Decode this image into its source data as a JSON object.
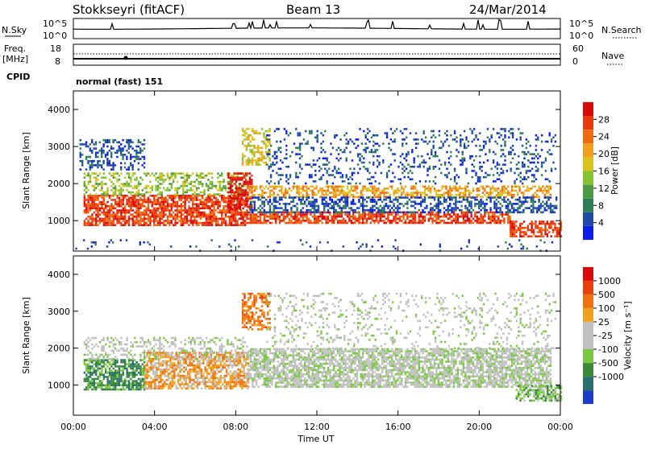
{
  "header": {
    "station": "Stokkseyri (fitACF)",
    "beam": "Beam 13",
    "date": "24/Mar/2014"
  },
  "noise_panel": {
    "left_label": "N.Sky",
    "right_label": "N.Search",
    "left_ticks": [
      "10^5",
      "10^0"
    ],
    "right_ticks": [
      "10^5",
      "10^0"
    ]
  },
  "freq_panel": {
    "left_label_1": "Freq.",
    "left_label_2": "[MHz]",
    "left_ticks": [
      "18",
      "8"
    ],
    "right_label": "Nave",
    "right_ticks": [
      "60",
      "0"
    ]
  },
  "cpid": {
    "label": "CPID",
    "value": "normal (fast) 151"
  },
  "chart_data": [
    {
      "type": "heatmap",
      "panel": "power",
      "ylabel": "Slant Range [km]",
      "xlabel": "Time UT",
      "xlim": [
        0,
        24
      ],
      "ylim": [
        180,
        4500
      ],
      "y_ticks": [
        1000,
        2000,
        3000,
        4000
      ],
      "x_tick_labels": [
        "00:00",
        "04:00",
        "08:00",
        "12:00",
        "16:00",
        "20:00",
        "00:00"
      ],
      "colorbar": {
        "label": "Power [dB]",
        "ticks": [
          "4",
          "8",
          "12",
          "16",
          "20",
          "24",
          "28"
        ],
        "colors": [
          "#0a1ee6",
          "#1f4aa8",
          "#2e7d55",
          "#4e9a44",
          "#86c232",
          "#d8c41c",
          "#f0a01a",
          "#f06a10",
          "#e83a0a",
          "#d80a0a"
        ]
      },
      "regions": [
        {
          "t0": 0.5,
          "t1": 8.6,
          "r0": 900,
          "r1": 1700,
          "level": 8,
          "density": 0.75
        },
        {
          "t0": 0.5,
          "t1": 8.6,
          "r0": 1700,
          "r1": 2300,
          "level": 4,
          "density": 0.45
        },
        {
          "t0": 0.3,
          "t1": 3.5,
          "r0": 2400,
          "r1": 3200,
          "level": 1,
          "density": 0.35
        },
        {
          "t0": 7.6,
          "t1": 8.8,
          "r0": 1300,
          "r1": 2300,
          "level": 9,
          "density": 0.6
        },
        {
          "t0": 8.3,
          "t1": 9.7,
          "r0": 2500,
          "r1": 3500,
          "level": 5,
          "density": 0.5
        },
        {
          "t0": 8.6,
          "t1": 23.5,
          "r0": 1650,
          "r1": 1950,
          "level": 6,
          "density": 0.55
        },
        {
          "t0": 8.6,
          "t1": 21.5,
          "r0": 950,
          "r1": 1250,
          "level": 8,
          "density": 0.7
        },
        {
          "t0": 8.6,
          "t1": 23.8,
          "r0": 1250,
          "r1": 1650,
          "level": 1,
          "density": 0.5
        },
        {
          "t0": 9.5,
          "t1": 23.8,
          "r0": 2000,
          "r1": 3500,
          "level": 1,
          "density": 0.18
        },
        {
          "t0": 21.5,
          "t1": 24.0,
          "r0": 600,
          "r1": 1000,
          "level": 8,
          "density": 0.65
        },
        {
          "t0": 0.0,
          "t1": 24.0,
          "r0": 200,
          "r1": 500,
          "level": 1,
          "density": 0.05
        }
      ]
    },
    {
      "type": "heatmap",
      "panel": "velocity",
      "ylabel": "Slant Range [km]",
      "xlabel": "Time UT",
      "xlim": [
        0,
        24
      ],
      "ylim": [
        180,
        4500
      ],
      "y_ticks": [
        1000,
        2000,
        3000,
        4000
      ],
      "x_tick_labels": [
        "00:00",
        "04:00",
        "08:00",
        "12:00",
        "16:00",
        "20:00",
        "00:00"
      ],
      "colorbar": {
        "label": "Velocity [m s⁻¹]",
        "ticks": [
          "1000",
          "500",
          "100",
          "25",
          "-25",
          "-100",
          "-500",
          "-1000"
        ],
        "colors": [
          "#1a3cc8",
          "#2a6e6e",
          "#3a8a3a",
          "#7ac840",
          "#c0c0c0",
          "#c0c0c0",
          "#f0a01a",
          "#f07010",
          "#e8400a",
          "#d80a0a"
        ]
      },
      "regions": [
        {
          "t0": 0.5,
          "t1": 3.5,
          "r0": 900,
          "r1": 1700,
          "level": 2,
          "density": 0.7
        },
        {
          "t0": 3.5,
          "t1": 8.6,
          "r0": 900,
          "r1": 1900,
          "level": 6,
          "density": 0.7
        },
        {
          "t0": 0.5,
          "t1": 8.6,
          "r0": 1700,
          "r1": 2300,
          "level": 4,
          "density": 0.35
        },
        {
          "t0": 8.3,
          "t1": 9.7,
          "r0": 2500,
          "r1": 3500,
          "level": 7,
          "density": 0.5
        },
        {
          "t0": 8.6,
          "t1": 23.5,
          "r0": 950,
          "r1": 2000,
          "level": 4,
          "density": 0.75
        },
        {
          "t0": 9.5,
          "t1": 23.8,
          "r0": 2000,
          "r1": 3500,
          "level": 4,
          "density": 0.15
        },
        {
          "t0": 21.8,
          "t1": 24.0,
          "r0": 600,
          "r1": 1000,
          "level": 3,
          "density": 0.65
        }
      ]
    }
  ]
}
